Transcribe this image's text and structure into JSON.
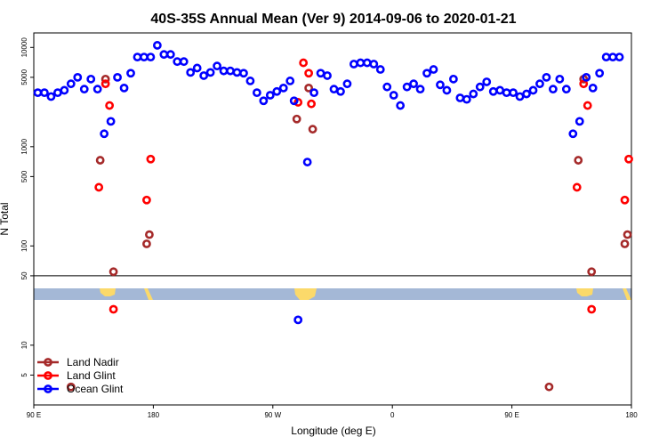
{
  "chart_data": {
    "type": "scatter",
    "title": "40S-35S Annual Mean (Ver 9)   2014-09-06 to 2020-01-21",
    "xlabel": "Longitude (deg E)",
    "ylabel": "N Total",
    "x_ticks": [
      {
        "value": 90,
        "label": "90 E"
      },
      {
        "value": 180,
        "label": "180"
      },
      {
        "value": 270,
        "label": "90 W"
      },
      {
        "value": 360,
        "label": "0"
      },
      {
        "value": 450,
        "label": "90 E"
      },
      {
        "value": 540,
        "label": "180"
      }
    ],
    "xlim": [
      90,
      540
    ],
    "y_scale": "log",
    "ylim": [
      2.5,
      14000
    ],
    "y_ticks": [
      {
        "value": 5,
        "label": "5"
      },
      {
        "value": 10,
        "label": "10"
      },
      {
        "value": 50,
        "label": "50"
      },
      {
        "value": 100,
        "label": "100"
      },
      {
        "value": 500,
        "label": "500"
      },
      {
        "value": 1000,
        "label": "1000"
      },
      {
        "value": 5000,
        "label": "5000"
      },
      {
        "value": 10000,
        "label": "10000"
      }
    ],
    "reference_line": 50,
    "legend_position": "bottom-left",
    "series": [
      {
        "name": "Land Nadir",
        "color": "#a52a2a",
        "points": [
          {
            "x": 140,
            "y": 730
          },
          {
            "x": 144,
            "y": 4800
          },
          {
            "x": 150,
            "y": 55
          },
          {
            "x": 175,
            "y": 105
          },
          {
            "x": 177,
            "y": 130
          },
          {
            "x": 288,
            "y": 1900
          },
          {
            "x": 297,
            "y": 3900
          },
          {
            "x": 300,
            "y": 1500
          },
          {
            "x": 118,
            "y": 3.8
          },
          {
            "x": 478,
            "y": 3.8
          },
          {
            "x": 500,
            "y": 730
          },
          {
            "x": 504,
            "y": 4800
          },
          {
            "x": 510,
            "y": 55
          },
          {
            "x": 535,
            "y": 105
          },
          {
            "x": 537,
            "y": 130
          }
        ]
      },
      {
        "name": "Land Glint",
        "color": "#ff0000",
        "points": [
          {
            "x": 139,
            "y": 390
          },
          {
            "x": 144,
            "y": 4300
          },
          {
            "x": 147,
            "y": 2600
          },
          {
            "x": 150,
            "y": 23
          },
          {
            "x": 175,
            "y": 290
          },
          {
            "x": 178,
            "y": 750
          },
          {
            "x": 289,
            "y": 2800
          },
          {
            "x": 293,
            "y": 7000
          },
          {
            "x": 297,
            "y": 5500
          },
          {
            "x": 299,
            "y": 2700
          },
          {
            "x": 499,
            "y": 390
          },
          {
            "x": 504,
            "y": 4300
          },
          {
            "x": 507,
            "y": 2600
          },
          {
            "x": 510,
            "y": 23
          },
          {
            "x": 535,
            "y": 290
          },
          {
            "x": 538,
            "y": 750
          }
        ]
      },
      {
        "name": "Ocean Glint",
        "color": "#0000ff",
        "points": [
          {
            "x": 93,
            "y": 3500
          },
          {
            "x": 98,
            "y": 3500
          },
          {
            "x": 103,
            "y": 3200
          },
          {
            "x": 108,
            "y": 3500
          },
          {
            "x": 113,
            "y": 3700
          },
          {
            "x": 118,
            "y": 4300
          },
          {
            "x": 123,
            "y": 5000
          },
          {
            "x": 128,
            "y": 3800
          },
          {
            "x": 133,
            "y": 4800
          },
          {
            "x": 138,
            "y": 3800
          },
          {
            "x": 143,
            "y": 1350
          },
          {
            "x": 148,
            "y": 1800
          },
          {
            "x": 153,
            "y": 5000
          },
          {
            "x": 158,
            "y": 3900
          },
          {
            "x": 163,
            "y": 5500
          },
          {
            "x": 168,
            "y": 8000
          },
          {
            "x": 173,
            "y": 8000
          },
          {
            "x": 178,
            "y": 8000
          },
          {
            "x": 183,
            "y": 10500
          },
          {
            "x": 188,
            "y": 8500
          },
          {
            "x": 193,
            "y": 8500
          },
          {
            "x": 198,
            "y": 7200
          },
          {
            "x": 203,
            "y": 7200
          },
          {
            "x": 208,
            "y": 5600
          },
          {
            "x": 213,
            "y": 6200
          },
          {
            "x": 218,
            "y": 5200
          },
          {
            "x": 223,
            "y": 5600
          },
          {
            "x": 228,
            "y": 6500
          },
          {
            "x": 233,
            "y": 5800
          },
          {
            "x": 238,
            "y": 5800
          },
          {
            "x": 243,
            "y": 5600
          },
          {
            "x": 248,
            "y": 5500
          },
          {
            "x": 253,
            "y": 4600
          },
          {
            "x": 258,
            "y": 3500
          },
          {
            "x": 263,
            "y": 2900
          },
          {
            "x": 268,
            "y": 3300
          },
          {
            "x": 273,
            "y": 3600
          },
          {
            "x": 278,
            "y": 3900
          },
          {
            "x": 283,
            "y": 4600
          },
          {
            "x": 286,
            "y": 2900
          },
          {
            "x": 289,
            "y": 18
          },
          {
            "x": 296,
            "y": 700
          },
          {
            "x": 301,
            "y": 3500
          },
          {
            "x": 306,
            "y": 5500
          },
          {
            "x": 311,
            "y": 5200
          },
          {
            "x": 316,
            "y": 3800
          },
          {
            "x": 321,
            "y": 3600
          },
          {
            "x": 326,
            "y": 4300
          },
          {
            "x": 331,
            "y": 6800
          },
          {
            "x": 336,
            "y": 7000
          },
          {
            "x": 341,
            "y": 7000
          },
          {
            "x": 346,
            "y": 6800
          },
          {
            "x": 351,
            "y": 6000
          },
          {
            "x": 356,
            "y": 4000
          },
          {
            "x": 361,
            "y": 3300
          },
          {
            "x": 366,
            "y": 2600
          },
          {
            "x": 371,
            "y": 4000
          },
          {
            "x": 376,
            "y": 4300
          },
          {
            "x": 381,
            "y": 3800
          },
          {
            "x": 386,
            "y": 5500
          },
          {
            "x": 391,
            "y": 6000
          },
          {
            "x": 396,
            "y": 4200
          },
          {
            "x": 401,
            "y": 3700
          },
          {
            "x": 406,
            "y": 4800
          },
          {
            "x": 411,
            "y": 3100
          },
          {
            "x": 416,
            "y": 3000
          },
          {
            "x": 421,
            "y": 3400
          },
          {
            "x": 426,
            "y": 4000
          },
          {
            "x": 431,
            "y": 4500
          },
          {
            "x": 436,
            "y": 3600
          },
          {
            "x": 441,
            "y": 3700
          },
          {
            "x": 446,
            "y": 3500
          },
          {
            "x": 451,
            "y": 3500
          },
          {
            "x": 456,
            "y": 3200
          },
          {
            "x": 461,
            "y": 3400
          },
          {
            "x": 466,
            "y": 3700
          },
          {
            "x": 471,
            "y": 4300
          },
          {
            "x": 476,
            "y": 5000
          },
          {
            "x": 481,
            "y": 3800
          },
          {
            "x": 486,
            "y": 4800
          },
          {
            "x": 491,
            "y": 3800
          },
          {
            "x": 496,
            "y": 1350
          },
          {
            "x": 501,
            "y": 1800
          },
          {
            "x": 506,
            "y": 5000
          },
          {
            "x": 511,
            "y": 3900
          },
          {
            "x": 516,
            "y": 5500
          },
          {
            "x": 521,
            "y": 8000
          },
          {
            "x": 526,
            "y": 8000
          },
          {
            "x": 531,
            "y": 8000
          }
        ]
      }
    ]
  }
}
